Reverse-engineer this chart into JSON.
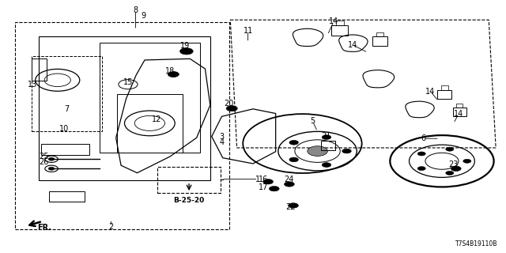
{
  "background_color": "#ffffff",
  "image_code": "T7S4B19110B",
  "diagram_code": "B-25-20",
  "line_color": "#000000",
  "text_color": "#000000",
  "font_size_labels": 7,
  "figsize": [
    6.4,
    3.2
  ],
  "dpi": 100
}
